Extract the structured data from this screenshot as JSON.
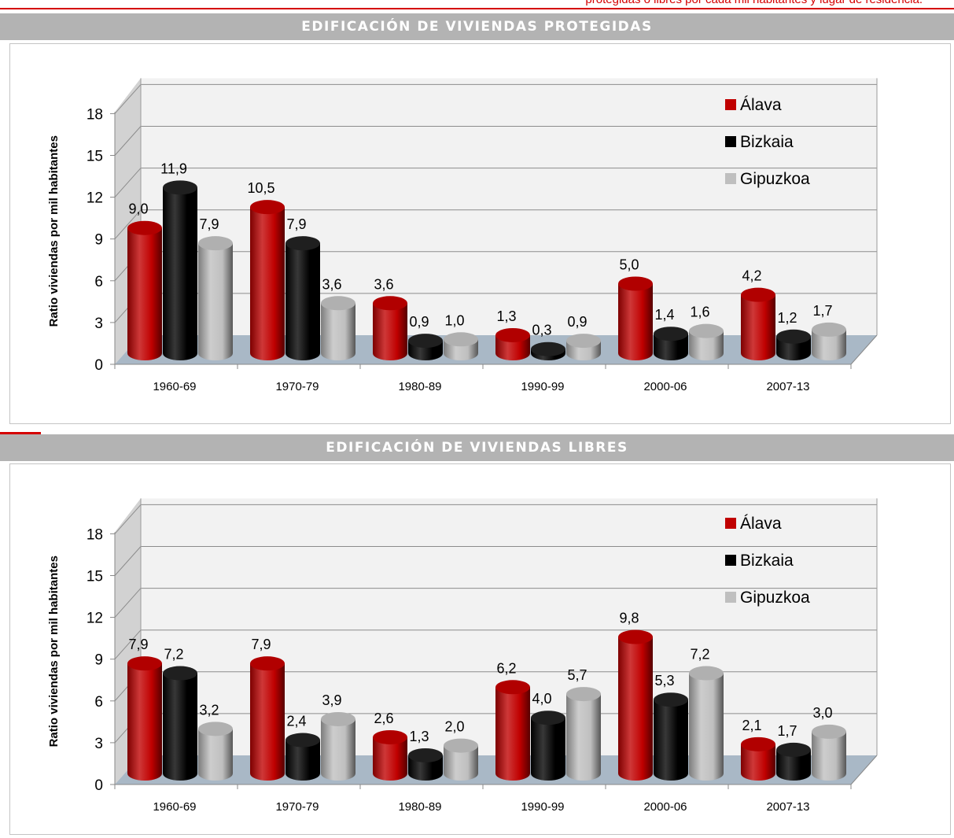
{
  "page": {
    "top_caption": "protegidas o libres por cada mil habitantes y lugar de residencia.",
    "colors": {
      "alava": "#c00000",
      "bizkaia": "#000000",
      "gipuzkoa": "#bfbfbf",
      "header": "#b3b3b3",
      "accent": "#d40000"
    }
  },
  "sections": [
    {
      "header": "EDIFICACIÓN DE VIVIENDAS PROTEGIDAS"
    },
    {
      "header": "EDIFICACIÓN DE VIVIENDAS LIBRES"
    }
  ],
  "chart_data": [
    {
      "type": "bar",
      "title": "EDIFICACIÓN DE VIVIENDAS PROTEGIDAS",
      "ylabel": "Ratio viviendas por mil habitantes",
      "xlabel": "",
      "ylim": [
        0,
        18
      ],
      "yticks": [
        "0",
        "3",
        "6",
        "9",
        "12",
        "15",
        "18"
      ],
      "categories": [
        "1960-69",
        "1970-79",
        "1980-89",
        "1990-99",
        "2000-06",
        "2007-13"
      ],
      "series": [
        {
          "name": "Álava",
          "color": "#c00000",
          "values": [
            9.0,
            10.5,
            3.6,
            1.3,
            5.0,
            4.2
          ],
          "labels": [
            "9,0",
            "10,5",
            "3,6",
            "1,3",
            "5,0",
            "4,2"
          ]
        },
        {
          "name": "Bizkaia",
          "color": "#000000",
          "values": [
            11.9,
            7.9,
            0.9,
            0.3,
            1.4,
            1.2
          ],
          "labels": [
            "11,9",
            "7,9",
            "0,9",
            "0,3",
            "1,4",
            "1,2"
          ]
        },
        {
          "name": "Gipuzkoa",
          "color": "#bfbfbf",
          "values": [
            7.9,
            3.6,
            1.0,
            0.9,
            1.6,
            1.7
          ],
          "labels": [
            "7,9",
            "3,6",
            "1,0",
            "0,9",
            "1,6",
            "1,7"
          ]
        }
      ],
      "legend": "top-right",
      "grid": true
    },
    {
      "type": "bar",
      "title": "EDIFICACIÓN DE VIVIENDAS LIBRES",
      "ylabel": "Ratio viviendas por mil habitantes",
      "xlabel": "",
      "ylim": [
        0,
        18
      ],
      "yticks": [
        "0",
        "3",
        "6",
        "9",
        "12",
        "15",
        "18"
      ],
      "categories": [
        "1960-69",
        "1970-79",
        "1980-89",
        "1990-99",
        "2000-06",
        "2007-13"
      ],
      "series": [
        {
          "name": "Álava",
          "color": "#c00000",
          "values": [
            7.9,
            7.9,
            2.6,
            6.2,
            9.8,
            2.1
          ],
          "labels": [
            "7,9",
            "7,9",
            "2,6",
            "6,2",
            "9,8",
            "2,1"
          ]
        },
        {
          "name": "Bizkaia",
          "color": "#000000",
          "values": [
            7.2,
            2.4,
            1.3,
            4.0,
            5.3,
            1.7
          ],
          "labels": [
            "7,2",
            "2,4",
            "1,3",
            "4,0",
            "5,3",
            "1,7"
          ]
        },
        {
          "name": "Gipuzkoa",
          "color": "#bfbfbf",
          "values": [
            3.2,
            3.9,
            2.0,
            5.7,
            7.2,
            3.0
          ],
          "labels": [
            "3,2",
            "3,9",
            "2,0",
            "5,7",
            "7,2",
            "3,0"
          ]
        }
      ],
      "legend": "top-right",
      "grid": true
    }
  ]
}
